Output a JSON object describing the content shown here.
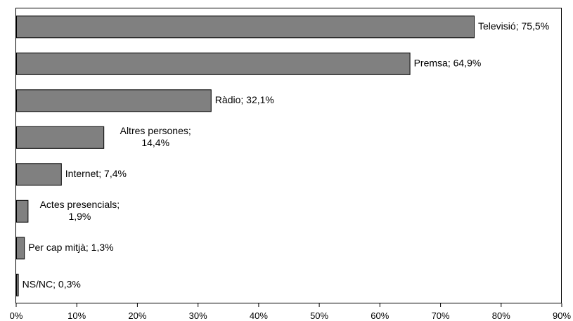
{
  "chart_data": {
    "type": "bar",
    "orientation": "horizontal",
    "categories": [
      "Televisió",
      "Premsa",
      "Ràdio",
      "Altres persones",
      "Internet",
      "Actes presencials",
      "Per cap mitjà",
      "NS/NC"
    ],
    "values": [
      75.5,
      64.9,
      32.1,
      14.4,
      7.4,
      1.9,
      1.3,
      0.3
    ],
    "data_labels": [
      [
        "Televisió; 75,5%"
      ],
      [
        "Premsa; 64,9%"
      ],
      [
        "Ràdio; 32,1%"
      ],
      [
        "Altres persones;",
        "14,4%"
      ],
      [
        "Internet; 7,4%"
      ],
      [
        "Actes presencials;",
        "1,9%"
      ],
      [
        "Per cap mitjà; 1,3%"
      ],
      [
        "NS/NC; 0,3%"
      ]
    ],
    "x_ticks": [
      "0%",
      "10%",
      "20%",
      "30%",
      "40%",
      "50%",
      "60%",
      "70%",
      "80%",
      "90%"
    ],
    "xlim": [
      0,
      90
    ],
    "grid": false,
    "legend": false,
    "bar_color": "#808080",
    "bar_edge_color": "#000000"
  }
}
